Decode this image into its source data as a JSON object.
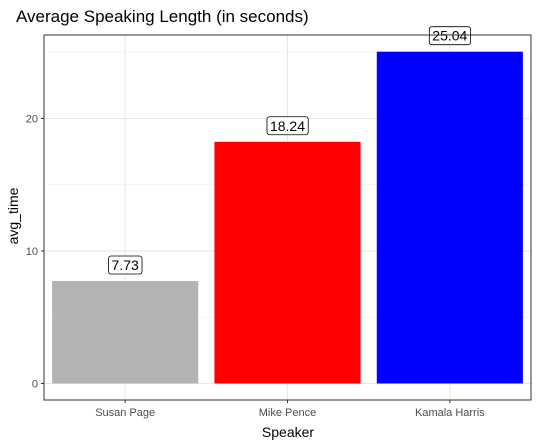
{
  "chart_data": {
    "type": "bar",
    "title": "Average Speaking Length (in seconds)",
    "xlabel": "Speaker",
    "ylabel": "avg_time",
    "categories": [
      "Susan Page",
      "Mike Pence",
      "Kamala Harris"
    ],
    "values": [
      7.73,
      18.24,
      25.04
    ],
    "value_labels": [
      "7.73",
      "18.24",
      "25.04"
    ],
    "colors": [
      "#b3b3b3",
      "#ff0000",
      "#0000ff"
    ],
    "ylim": [
      -1.25,
      26.3
    ],
    "yticks": [
      0,
      10,
      20
    ],
    "ytick_labels": [
      "0",
      "10",
      "20"
    ],
    "minor_yticks": [
      5,
      15,
      25
    ],
    "grid": true,
    "legend": "none"
  }
}
